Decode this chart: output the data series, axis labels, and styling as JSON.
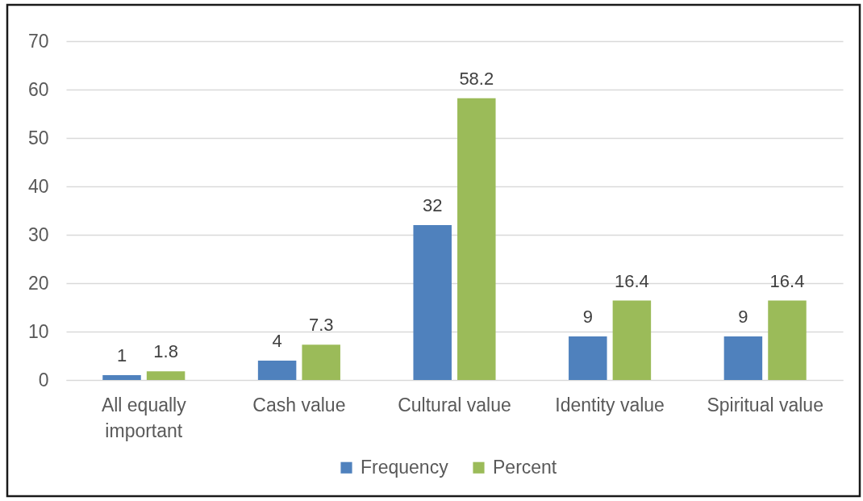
{
  "chart_data": {
    "type": "bar",
    "categories": [
      "All equally important",
      "Cash value",
      "Cultural value",
      "Identity value",
      "Spiritual value"
    ],
    "series": [
      {
        "name": "Frequency",
        "color": "#4f81bd",
        "values": [
          1,
          4,
          32,
          9,
          9
        ]
      },
      {
        "name": "Percent",
        "color": "#9bbb59",
        "values": [
          1.8,
          7.3,
          58.2,
          16.4,
          16.4
        ]
      }
    ],
    "ylim": [
      0,
      70
    ],
    "yticks": [
      0,
      10,
      20,
      30,
      40,
      50,
      60,
      70
    ],
    "grid": "y",
    "legend": "bottom",
    "data_labels": true
  }
}
